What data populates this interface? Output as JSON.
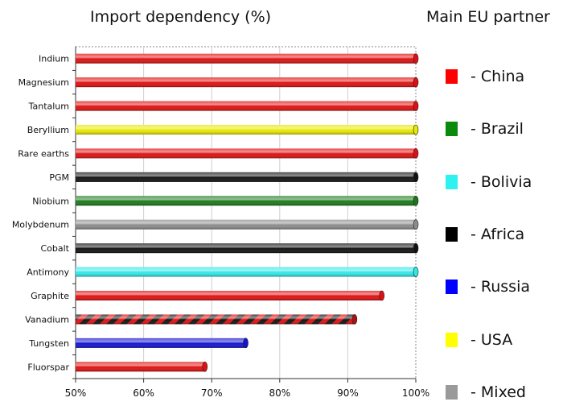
{
  "chart_data": {
    "type": "bar",
    "orientation": "horizontal",
    "title": "Import dependency (%)",
    "xlim": [
      50,
      100
    ],
    "xticks": [
      "50%",
      "60%",
      "70%",
      "80%",
      "90%",
      "100%"
    ],
    "grid": true,
    "categories": [
      "Indium",
      "Magnesium",
      "Tantalum",
      "Beryllium",
      "Rare earths",
      "PGM",
      "Niobium",
      "Molybdenum",
      "Cobalt",
      "Antimony",
      "Graphite",
      "Vanadium",
      "Tungsten",
      "Fluorspar"
    ],
    "values": [
      100,
      100,
      100,
      100,
      100,
      100,
      100,
      100,
      100,
      100,
      95,
      91,
      75,
      69
    ],
    "bar_colors": [
      "#e01010",
      "#e01010",
      "#e01010",
      "#e8e800",
      "#e01010",
      "#111111",
      "#1a7a1a",
      "#8c8c8c",
      "#111111",
      "#30e8e8",
      "#e01010",
      "striped",
      "#1414d0",
      "#e01010"
    ],
    "legend_title": "Main EU partner",
    "legend": [
      {
        "label": "- China",
        "color": "#ff0000"
      },
      {
        "label": "- Brazil",
        "color": "#0a8a0a"
      },
      {
        "label": "- Bolivia",
        "color": "#2ef2f2"
      },
      {
        "label": "- Africa",
        "color": "#000000"
      },
      {
        "label": "- Russia",
        "color": "#0000ff"
      },
      {
        "label": "- USA",
        "color": "#ffff00"
      },
      {
        "label": "- Mixed",
        "color": "#9a9a9a"
      }
    ]
  }
}
